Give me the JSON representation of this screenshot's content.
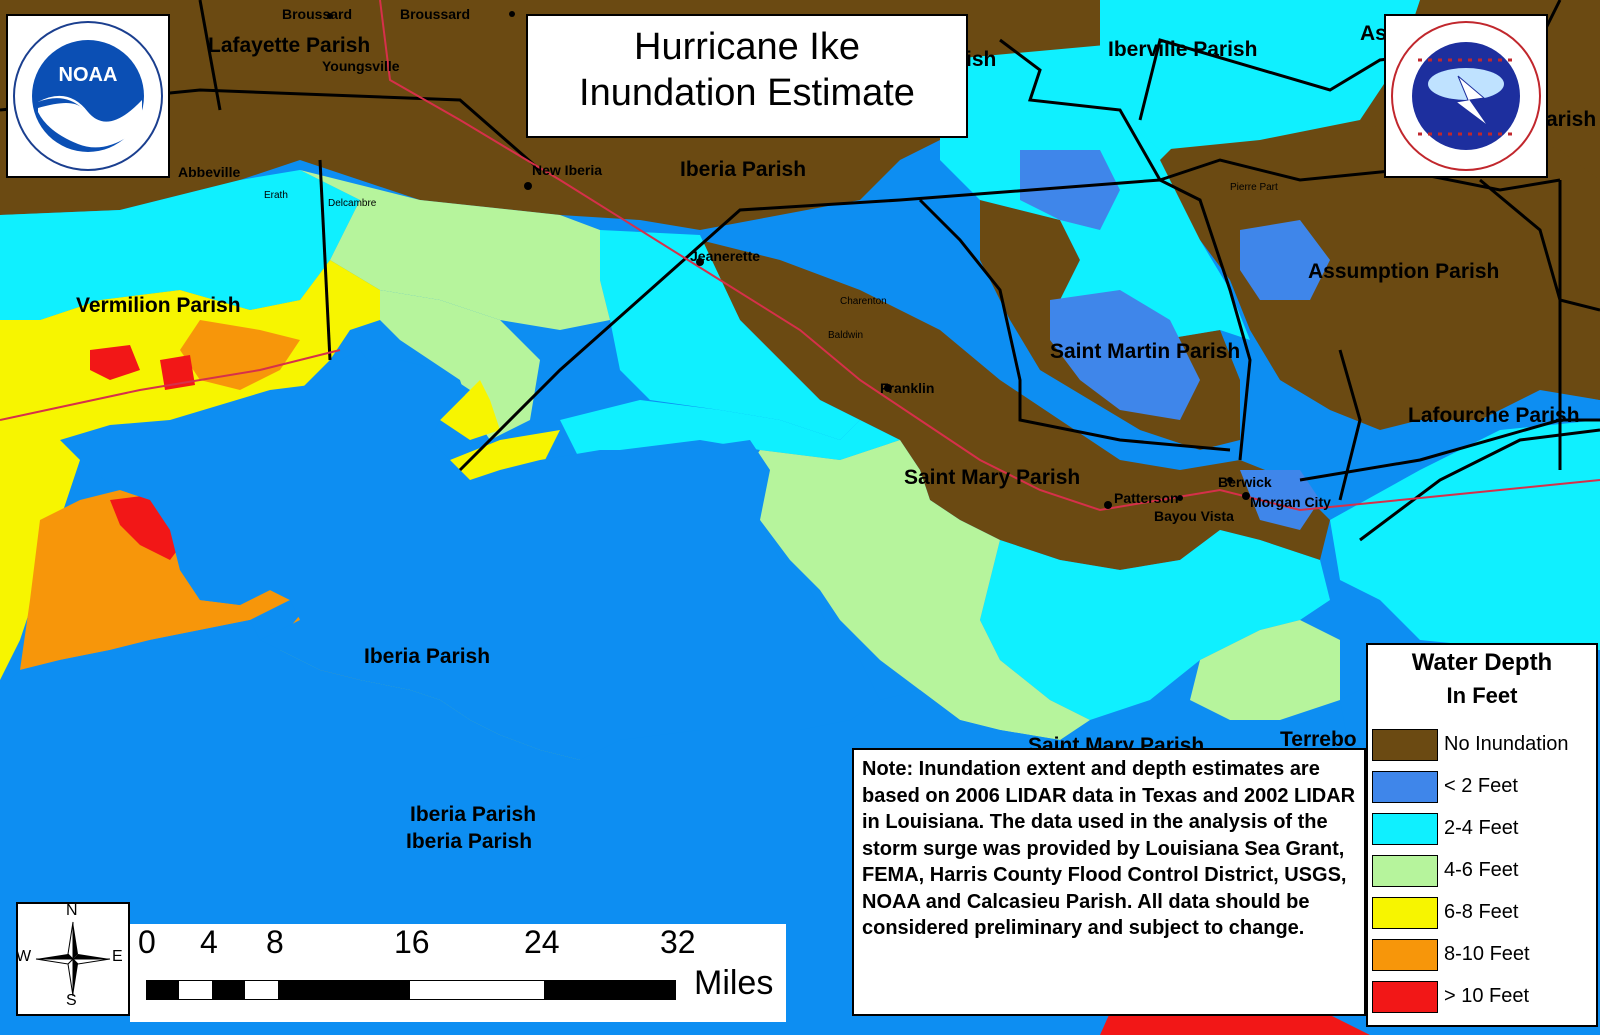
{
  "title": {
    "line1": "Hurricane Ike",
    "line2": "Inundation Estimate"
  },
  "logos": {
    "noaa": {
      "icon": "noaa-logo",
      "text": "NOAA",
      "ring_text": "NATIONAL OCEANIC AND ATMOSPHERIC ADMINISTRATION · U.S. DEPARTMENT OF COMMERCE"
    },
    "nws": {
      "icon": "nws-logo",
      "ring_text": "NATIONAL WEATHER SERVICE · U.S. DEPARTMENT OF COMMERCE"
    }
  },
  "labels": {
    "parishes": {
      "lafayette": "Lafayette Parish",
      "iberville": "Iberville Parish",
      "iberia_top": "Iberia Parish",
      "assumption": "Assumption Parish",
      "vermilion": "Vermilion Parish",
      "saint_martin": "Saint Martin Parish",
      "lafourche": "Lafourche Parish",
      "saint_mary": "Saint Mary Parish",
      "iberia_island": "Iberia Parish",
      "iberia_water1": "Iberia Parish",
      "iberia_water2": "Iberia Parish",
      "saint_mary_lower": "Saint Mary Parish",
      "terrebonne": "Terrebo",
      "partial_ish": "ish",
      "partial_arish": "arish",
      "partial_as": "As"
    },
    "towns": {
      "broussard1": "Broussard",
      "broussard2": "Broussard",
      "youngsville": "Youngsville",
      "abbeville": "Abbeville",
      "new_iberia": "New Iberia",
      "jeanerette": "Jeanerette",
      "franklin": "Franklin",
      "patterson": "Patterson",
      "berwick": "Berwick",
      "morgan_city": "Morgan City",
      "bayou_vista": "Bayou Vista",
      "pierre_part": "Pierre Part",
      "charenton": "Charenton",
      "baldwin": "Baldwin",
      "erath": "Erath",
      "delcambre": "Delcambre"
    }
  },
  "legend": {
    "title": "Water Depth",
    "subtitle": "In Feet",
    "items": [
      {
        "label": "No Inundation",
        "color": "#6b4a12"
      },
      {
        "label": "< 2 Feet",
        "color": "#3f86ea"
      },
      {
        "label": "2-4 Feet",
        "color": "#0ff0ff"
      },
      {
        "label": "4-6 Feet",
        "color": "#b6f49c"
      },
      {
        "label": "6-8 Feet",
        "color": "#f7f500"
      },
      {
        "label": "8-10 Feet",
        "color": "#f7960a"
      },
      {
        "label": "> 10 Feet",
        "color": "#f21717"
      }
    ]
  },
  "note": "Note: Inundation extent and depth estimates are based on 2006 LIDAR data in Texas and 2002 LIDAR in Louisiana. The data used in the analysis of the storm surge was provided by Louisiana Sea Grant, FEMA, Harris County Flood Control District, USGS, NOAA and Calcasieu Parish. All data should be considered preliminary and subject to change.",
  "compass": {
    "n": "N",
    "s": "S",
    "e": "E",
    "w": "W",
    "icon": "compass-rose-icon"
  },
  "scale": {
    "ticks": [
      "0",
      "4",
      "8",
      "16",
      "24",
      "32"
    ],
    "unit": "Miles"
  },
  "colors": {
    "water": "#0d8ef2",
    "no_inundation": "#6b4a12",
    "lt2": "#3f86ea",
    "d2_4": "#0ff0ff",
    "d4_6": "#b6f49c",
    "d6_8": "#f7f500",
    "d8_10": "#f7960a",
    "gt10": "#f21717"
  }
}
